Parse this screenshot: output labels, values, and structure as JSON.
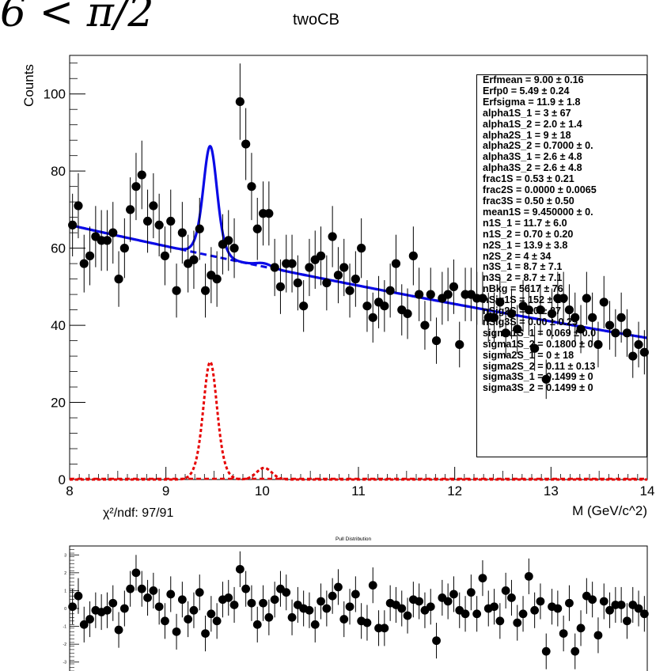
{
  "header": {
    "fragment": "6 < π/2",
    "title": "twoCB"
  },
  "stats_box": {
    "lines": [
      "Erfmean =  9.00 ± 0.16",
      "Erfp0 =  5.49 ± 0.24",
      "Erfsigma =  11.9 ± 1.8",
      "alpha1S_1 =  3 ± 67",
      "alpha1S_2 =  2.0 ± 1.4",
      "alpha2S_1 =  9 ± 18",
      "alpha2S_2 =  0.7000 ± 0.",
      "alpha3S_1 =  2.6 ± 4.8",
      "alpha3S_2 =  2.6 ± 4.8",
      "frac1S =  0.53 ± 0.21",
      "frac2S =  0.0000 ± 0.0065",
      "frac3S =  0.50 ± 0.50",
      "mean1S =  9.450000 ± 0.",
      "n1S_1 =  11.7 ± 6.0",
      "n1S_2 =  0.70 ± 0.20",
      "n2S_1 =  13.9 ± 3.8",
      "n2S_2 =  4 ± 34",
      "n3S_1 =  8.7 ± 7.1",
      "n3S_2 =  8.7 ± 7.1",
      "nBkg =  5617 ± 76",
      "nSig1S =  152 ± 26",
      "nSig2S =  20 ± 27",
      "nSig3S =  0.00 ± 0.25",
      "sigma1S_1 =  0.069 ± 0.0",
      "sigma1S_2 =  0.1800 ± 0",
      "sigma2S_1 =  0 ± 18",
      "sigma2S_2 =  0.11 ± 0.13",
      "sigma3S_1 =  0.1499 ± 0",
      "sigma3S_2 =  0.1499 ± 0"
    ]
  },
  "pull_panel": {
    "chi2_label": "χ²/ndf:  97/91",
    "title": "Pull Distribution"
  },
  "colors": {
    "fit": "#0a0ae6",
    "signal": "#e60000",
    "markers": "#000000"
  },
  "chart_data": [
    {
      "type": "scatter",
      "title": "twoCB",
      "xlabel": "M (GeV/c^2)",
      "ylabel": "Counts",
      "xlim": [
        8,
        14
      ],
      "ylim": [
        0,
        110
      ],
      "xticks": [
        8,
        9,
        10,
        11,
        12,
        13,
        14
      ],
      "yticks": [
        0,
        20,
        40,
        60,
        80,
        100
      ],
      "grid": false,
      "legend": "none",
      "series": [
        {
          "kind": "points_with_errorbars",
          "x": [
            8.03,
            8.09,
            8.15,
            8.21,
            8.27,
            8.33,
            8.39,
            8.45,
            8.51,
            8.57,
            8.63,
            8.69,
            8.75,
            8.81,
            8.87,
            8.93,
            8.99,
            9.05,
            9.11,
            9.17,
            9.23,
            9.29,
            9.35,
            9.41,
            9.47,
            9.53,
            9.59,
            9.65,
            9.71,
            9.77,
            9.83,
            9.89,
            9.95,
            10.01,
            10.07,
            10.13,
            10.19,
            10.25,
            10.31,
            10.37,
            10.43,
            10.49,
            10.55,
            10.61,
            10.67,
            10.73,
            10.79,
            10.85,
            10.91,
            10.97,
            11.03,
            11.09,
            11.15,
            11.21,
            11.27,
            11.33,
            11.39,
            11.45,
            11.51,
            11.57,
            11.63,
            11.69,
            11.75,
            11.81,
            11.87,
            11.93,
            11.99,
            12.05,
            12.11,
            12.17,
            12.23,
            12.29,
            12.35,
            12.41,
            12.47,
            12.53,
            12.59,
            12.65,
            12.71,
            12.77,
            12.83,
            12.89,
            12.95,
            13.01,
            13.07,
            13.13,
            13.19,
            13.25,
            13.31,
            13.37,
            13.43,
            13.49,
            13.55,
            13.61,
            13.67,
            13.73,
            13.79,
            13.85,
            13.91,
            13.97
          ],
          "y": [
            66,
            71,
            56,
            58,
            63,
            62,
            62,
            64,
            52,
            60,
            70,
            76,
            79,
            67,
            71,
            66,
            58,
            67,
            49,
            64,
            56,
            57,
            65,
            49,
            53,
            52,
            61,
            62,
            60,
            98,
            87,
            76,
            65,
            69,
            69,
            55,
            50,
            56,
            56,
            51,
            45,
            55,
            57,
            58,
            51,
            63,
            53,
            55,
            49,
            52,
            60,
            45,
            42,
            46,
            45,
            49,
            56,
            44,
            43,
            58,
            48,
            40,
            48,
            36,
            47,
            48,
            50,
            35,
            48,
            48,
            47,
            47,
            42,
            42,
            46,
            38,
            43,
            39,
            45,
            44,
            34,
            44,
            26,
            43,
            47,
            47,
            44,
            42,
            39,
            47,
            42,
            35,
            46,
            40,
            38,
            42,
            38,
            32,
            35,
            33
          ],
          "errors": "sqrt(N)"
        },
        {
          "name": "",
          "kind": "fit_total",
          "color": "blue",
          "style": "solid"
        },
        {
          "name": "",
          "kind": "background",
          "color": "blue",
          "style": "dashed"
        },
        {
          "name": "",
          "kind": "signal_components",
          "color": "red",
          "style": "dotted",
          "peaks_at": [
            9.46,
            10.02
          ],
          "peak_heights": [
            30,
            3
          ]
        }
      ]
    },
    {
      "type": "scatter",
      "title": "Pull Distribution",
      "xlabel": "",
      "ylabel": "",
      "xlim": [
        8,
        14
      ],
      "ylim": [
        -3.5,
        3.5
      ],
      "yticks": [
        -3,
        -2,
        -1,
        0,
        1,
        2,
        3
      ],
      "grid": false,
      "series": [
        {
          "kind": "pull_points_with_errorbars",
          "x": [
            8.03,
            8.09,
            8.15,
            8.21,
            8.27,
            8.33,
            8.39,
            8.45,
            8.51,
            8.57,
            8.63,
            8.69,
            8.75,
            8.81,
            8.87,
            8.93,
            8.99,
            9.05,
            9.11,
            9.17,
            9.23,
            9.29,
            9.35,
            9.41,
            9.47,
            9.53,
            9.59,
            9.65,
            9.71,
            9.77,
            9.83,
            9.89,
            9.95,
            10.01,
            10.07,
            10.13,
            10.19,
            10.25,
            10.31,
            10.37,
            10.43,
            10.49,
            10.55,
            10.61,
            10.67,
            10.73,
            10.79,
            10.85,
            10.91,
            10.97,
            11.03,
            11.09,
            11.15,
            11.21,
            11.27,
            11.33,
            11.39,
            11.45,
            11.51,
            11.57,
            11.63,
            11.69,
            11.75,
            11.81,
            11.87,
            11.93,
            11.99,
            12.05,
            12.11,
            12.17,
            12.23,
            12.29,
            12.35,
            12.41,
            12.47,
            12.53,
            12.59,
            12.65,
            12.71,
            12.77,
            12.83,
            12.89,
            12.95,
            13.01,
            13.07,
            13.13,
            13.19,
            13.25,
            13.31,
            13.37,
            13.43,
            13.49,
            13.55,
            13.61,
            13.67,
            13.73,
            13.79,
            13.85,
            13.91,
            13.97
          ],
          "y": [
            0.1,
            0.7,
            -0.9,
            -0.6,
            -0.1,
            -0.2,
            -0.1,
            0.3,
            -1.2,
            0.0,
            1.1,
            2.0,
            1.1,
            0.6,
            1.0,
            0.1,
            -0.7,
            0.8,
            -1.3,
            0.5,
            -0.6,
            -0.1,
            0.9,
            -1.4,
            -0.3,
            -0.7,
            0.5,
            0.6,
            0.2,
            2.2,
            1.1,
            0.3,
            -0.9,
            0.3,
            -0.5,
            0.5,
            1.1,
            0.9,
            -0.5,
            0.2,
            0.0,
            -0.1,
            -0.9,
            0.4,
            0.0,
            0.7,
            1.2,
            -0.6,
            0.1,
            0.8,
            -0.7,
            -0.8,
            1.3,
            -1.1,
            -1.1,
            0.3,
            0.2,
            0.0,
            -0.4,
            0.5,
            0.4,
            -0.1,
            0.1,
            -1.8,
            0.6,
            0.4,
            0.8,
            -0.1,
            -0.3,
            0.9,
            -0.3,
            1.7,
            0.0,
            0.1,
            -0.7,
            1.0,
            0.6,
            -0.8,
            -0.3,
            1.8,
            -0.1,
            0.4,
            -2.4,
            0.1,
            0.0,
            -1.4,
            0.3,
            -2.4,
            -1.1,
            0.7,
            0.5,
            -1.5,
            0.4,
            -0.1,
            0.2,
            0.2,
            -0.7,
            0.2,
            0.0,
            -0.3
          ]
        }
      ]
    }
  ]
}
